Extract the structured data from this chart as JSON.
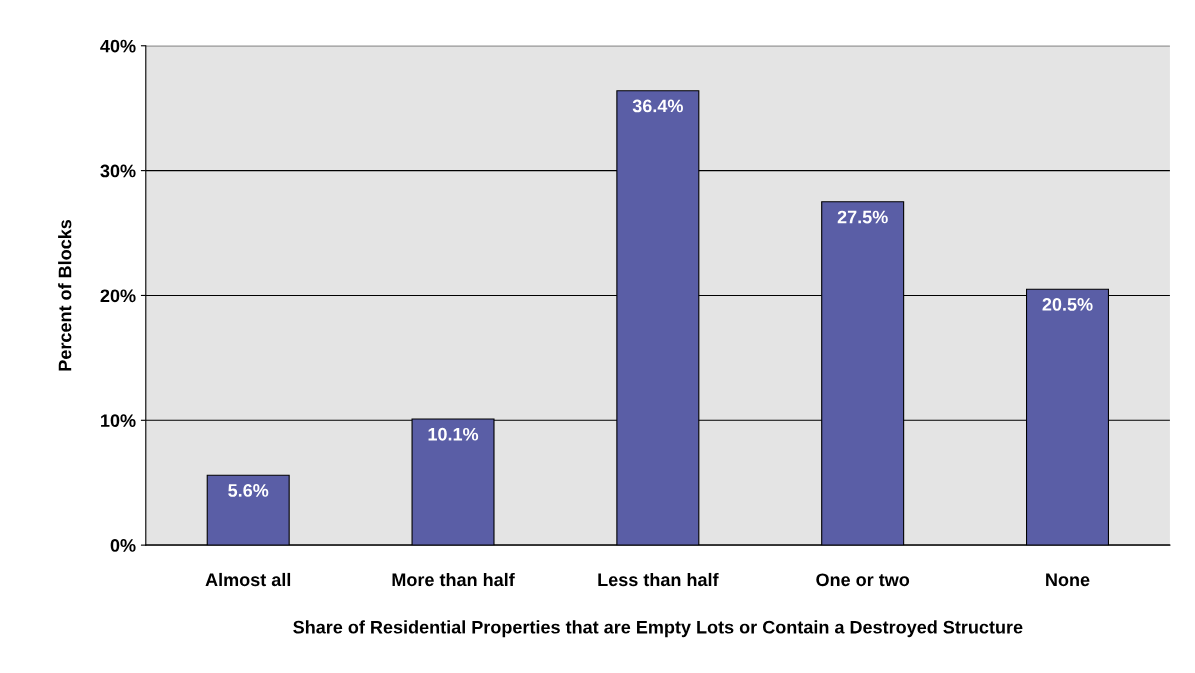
{
  "chart_data": {
    "type": "bar",
    "xlabel": "Share of Residential Properties that are Empty Lots or Contain a Destroyed Structure",
    "ylabel": "Percent of Blocks",
    "categories": [
      "Almost all",
      "More than half",
      "Less than half",
      "One or two",
      "None"
    ],
    "values": [
      5.6,
      10.1,
      36.4,
      27.5,
      20.5
    ],
    "value_labels": [
      "5.6%",
      "10.1%",
      "36.4%",
      "27.5%",
      "20.5%"
    ],
    "color": "#5a5ea6",
    "ylim": [
      0,
      40
    ],
    "yticks": [
      {
        "value": 0,
        "label": "0%"
      },
      {
        "value": 10,
        "label": "10%"
      },
      {
        "value": 20,
        "label": "20%"
      },
      {
        "value": 30,
        "label": "30%"
      },
      {
        "value": 40,
        "label": "40%"
      }
    ],
    "grid": "y",
    "legend": false
  }
}
